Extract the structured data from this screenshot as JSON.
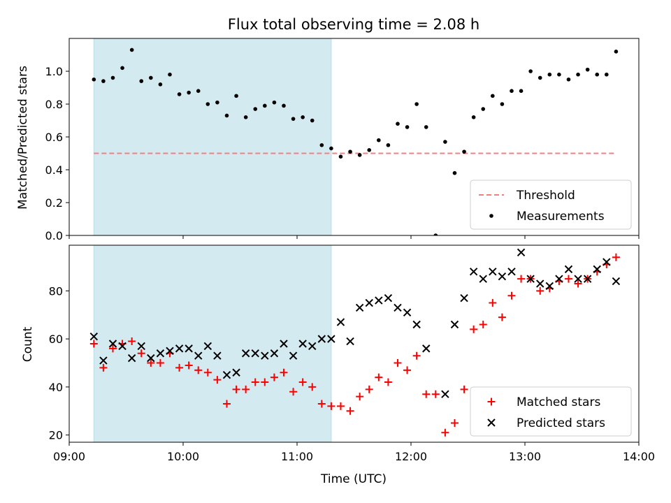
{
  "chart_data": [
    {
      "type": "scatter",
      "title": "Flux total observing time = 2.08 h",
      "ylabel": "Matched/Predicted stars",
      "xlabel": "",
      "x_unit": "time (HH:MM, UTC)",
      "xlim": [
        "09:00",
        "14:00"
      ],
      "ylim": [
        0,
        1.2
      ],
      "yticks": [
        "0.0",
        "0.2",
        "0.4",
        "0.6",
        "0.8",
        "1.0"
      ],
      "shaded_region": {
        "x_start": "09:13",
        "x_end": "11:18",
        "color": "#d4eaf1"
      },
      "threshold": {
        "name": "Threshold",
        "value": 0.5,
        "x_start": "09:13",
        "x_end": "13:48",
        "color": "#f08080",
        "style": "dashed"
      },
      "legend": {
        "position": "lower right",
        "entries": [
          "Threshold",
          "Measurements"
        ]
      },
      "series": [
        {
          "name": "Measurements",
          "marker": "dot",
          "color": "#000000",
          "points": [
            [
              "09:13",
              0.95
            ],
            [
              "09:18",
              0.94
            ],
            [
              "09:23",
              0.96
            ],
            [
              "09:28",
              1.02
            ],
            [
              "09:33",
              1.13
            ],
            [
              "09:38",
              0.94
            ],
            [
              "09:43",
              0.96
            ],
            [
              "09:48",
              0.92
            ],
            [
              "09:53",
              0.98
            ],
            [
              "09:58",
              0.86
            ],
            [
              "10:03",
              0.87
            ],
            [
              "10:08",
              0.88
            ],
            [
              "10:13",
              0.8
            ],
            [
              "10:18",
              0.81
            ],
            [
              "10:23",
              0.73
            ],
            [
              "10:28",
              0.85
            ],
            [
              "10:33",
              0.72
            ],
            [
              "10:38",
              0.77
            ],
            [
              "10:43",
              0.79
            ],
            [
              "10:48",
              0.81
            ],
            [
              "10:53",
              0.79
            ],
            [
              "10:58",
              0.71
            ],
            [
              "11:03",
              0.72
            ],
            [
              "11:08",
              0.7
            ],
            [
              "11:13",
              0.55
            ],
            [
              "11:18",
              0.53
            ],
            [
              "11:23",
              0.48
            ],
            [
              "11:28",
              0.51
            ],
            [
              "11:33",
              0.49
            ],
            [
              "11:38",
              0.52
            ],
            [
              "11:43",
              0.58
            ],
            [
              "11:48",
              0.55
            ],
            [
              "11:53",
              0.68
            ],
            [
              "11:58",
              0.66
            ],
            [
              "12:03",
              0.8
            ],
            [
              "12:08",
              0.66
            ],
            [
              "12:13",
              0.0
            ],
            [
              "12:18",
              0.57
            ],
            [
              "12:23",
              0.38
            ],
            [
              "12:28",
              0.51
            ],
            [
              "12:33",
              0.72
            ],
            [
              "12:38",
              0.77
            ],
            [
              "12:43",
              0.85
            ],
            [
              "12:48",
              0.8
            ],
            [
              "12:53",
              0.88
            ],
            [
              "12:58",
              0.88
            ],
            [
              "13:03",
              1.0
            ],
            [
              "13:08",
              0.96
            ],
            [
              "13:13",
              0.98
            ],
            [
              "13:18",
              0.98
            ],
            [
              "13:23",
              0.95
            ],
            [
              "13:28",
              0.98
            ],
            [
              "13:33",
              1.01
            ],
            [
              "13:38",
              0.98
            ],
            [
              "13:43",
              0.98
            ],
            [
              "13:48",
              1.12
            ]
          ]
        }
      ]
    },
    {
      "type": "scatter",
      "title": "",
      "ylabel": "Count",
      "xlabel": "Time (UTC)",
      "x_unit": "time (HH:MM, UTC)",
      "xlim": [
        "09:00",
        "14:00"
      ],
      "ylim": [
        17,
        99
      ],
      "xticks": [
        "09:00",
        "10:00",
        "11:00",
        "12:00",
        "13:00",
        "14:00"
      ],
      "yticks": [
        "20",
        "40",
        "60",
        "80"
      ],
      "shaded_region": {
        "x_start": "09:13",
        "x_end": "11:18",
        "color": "#d4eaf1"
      },
      "legend": {
        "position": "lower right",
        "entries": [
          "Matched stars",
          "Predicted stars"
        ]
      },
      "series": [
        {
          "name": "Matched stars",
          "marker": "plus",
          "color": "#ff0000",
          "points": [
            [
              "09:13",
              58
            ],
            [
              "09:18",
              48
            ],
            [
              "09:23",
              56
            ],
            [
              "09:28",
              58
            ],
            [
              "09:33",
              59
            ],
            [
              "09:38",
              54
            ],
            [
              "09:43",
              50
            ],
            [
              "09:48",
              50
            ],
            [
              "09:53",
              54
            ],
            [
              "09:58",
              48
            ],
            [
              "10:03",
              49
            ],
            [
              "10:08",
              47
            ],
            [
              "10:13",
              46
            ],
            [
              "10:18",
              43
            ],
            [
              "10:23",
              33
            ],
            [
              "10:28",
              39
            ],
            [
              "10:33",
              39
            ],
            [
              "10:38",
              42
            ],
            [
              "10:43",
              42
            ],
            [
              "10:48",
              44
            ],
            [
              "10:53",
              46
            ],
            [
              "10:58",
              38
            ],
            [
              "11:03",
              42
            ],
            [
              "11:08",
              40
            ],
            [
              "11:13",
              33
            ],
            [
              "11:18",
              32
            ],
            [
              "11:23",
              32
            ],
            [
              "11:28",
              30
            ],
            [
              "11:33",
              36
            ],
            [
              "11:38",
              39
            ],
            [
              "11:43",
              44
            ],
            [
              "11:48",
              42
            ],
            [
              "11:53",
              50
            ],
            [
              "11:58",
              47
            ],
            [
              "12:03",
              53
            ],
            [
              "12:08",
              37
            ],
            [
              "12:13",
              37
            ],
            [
              "12:18",
              21
            ],
            [
              "12:23",
              25
            ],
            [
              "12:28",
              39
            ],
            [
              "12:33",
              64
            ],
            [
              "12:38",
              66
            ],
            [
              "12:43",
              75
            ],
            [
              "12:48",
              69
            ],
            [
              "12:53",
              78
            ],
            [
              "12:58",
              85
            ],
            [
              "13:03",
              85
            ],
            [
              "13:08",
              80
            ],
            [
              "13:13",
              81
            ],
            [
              "13:18",
              84
            ],
            [
              "13:23",
              85
            ],
            [
              "13:28",
              83
            ],
            [
              "13:33",
              85
            ],
            [
              "13:38",
              88
            ],
            [
              "13:43",
              91
            ],
            [
              "13:48",
              94
            ]
          ]
        },
        {
          "name": "Predicted stars",
          "marker": "x",
          "color": "#000000",
          "points": [
            [
              "09:13",
              61
            ],
            [
              "09:18",
              51
            ],
            [
              "09:23",
              58
            ],
            [
              "09:28",
              57
            ],
            [
              "09:33",
              52
            ],
            [
              "09:38",
              57
            ],
            [
              "09:43",
              52
            ],
            [
              "09:48",
              54
            ],
            [
              "09:53",
              55
            ],
            [
              "09:58",
              56
            ],
            [
              "10:03",
              56
            ],
            [
              "10:08",
              53
            ],
            [
              "10:13",
              57
            ],
            [
              "10:18",
              53
            ],
            [
              "10:23",
              45
            ],
            [
              "10:28",
              46
            ],
            [
              "10:33",
              54
            ],
            [
              "10:38",
              54
            ],
            [
              "10:43",
              53
            ],
            [
              "10:48",
              54
            ],
            [
              "10:53",
              58
            ],
            [
              "10:58",
              53
            ],
            [
              "11:03",
              58
            ],
            [
              "11:08",
              57
            ],
            [
              "11:13",
              60
            ],
            [
              "11:18",
              60
            ],
            [
              "11:23",
              67
            ],
            [
              "11:28",
              59
            ],
            [
              "11:33",
              73
            ],
            [
              "11:38",
              75
            ],
            [
              "11:43",
              76
            ],
            [
              "11:48",
              77
            ],
            [
              "11:53",
              73
            ],
            [
              "11:58",
              71
            ],
            [
              "12:03",
              66
            ],
            [
              "12:08",
              56
            ],
            [
              "12:18",
              37
            ],
            [
              "12:23",
              66
            ],
            [
              "12:28",
              77
            ],
            [
              "12:33",
              88
            ],
            [
              "12:38",
              85
            ],
            [
              "12:43",
              88
            ],
            [
              "12:48",
              86
            ],
            [
              "12:53",
              88
            ],
            [
              "12:58",
              96
            ],
            [
              "13:03",
              85
            ],
            [
              "13:08",
              83
            ],
            [
              "13:13",
              82
            ],
            [
              "13:18",
              85
            ],
            [
              "13:23",
              89
            ],
            [
              "13:28",
              85
            ],
            [
              "13:33",
              85
            ],
            [
              "13:38",
              89
            ],
            [
              "13:43",
              92
            ],
            [
              "13:48",
              84
            ]
          ]
        }
      ]
    }
  ]
}
